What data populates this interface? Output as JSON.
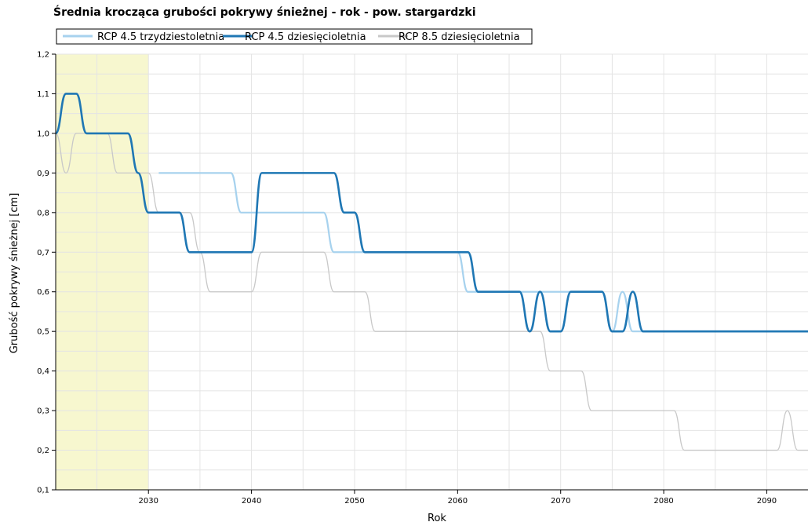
{
  "chart_data": {
    "type": "line",
    "title": "Średnia krocząca grubości pokrywy śnieżnej - rok - pow. stargardzki",
    "xlabel": "Rok",
    "ylabel": "Grubość pokrywy śnieżnej [cm]",
    "xlim": [
      2021,
      2094
    ],
    "ylim": [
      0.1,
      1.2
    ],
    "x_ticks": [
      2030,
      2040,
      2050,
      2060,
      2070,
      2080,
      2090
    ],
    "y_ticks": [
      "0,1",
      "0,2",
      "0,3",
      "0,4",
      "0,5",
      "0,6",
      "0,7",
      "0,8",
      "0,9",
      "1,0",
      "1,1",
      "1,2"
    ],
    "grid": true,
    "legend_position": "top-left",
    "highlight_band": {
      "x_from": 2021,
      "x_to": 2030,
      "color": "#f7f7cf"
    },
    "series": [
      {
        "name": "RCP 4.5 trzydziestoletnia",
        "color": "#a7d2ee",
        "x": [
          2031,
          2038,
          2039,
          2047,
          2048,
          2050,
          2051,
          2060,
          2061,
          2065,
          2066,
          2074,
          2075,
          2076,
          2077,
          2094
        ],
        "y": [
          0.9,
          0.9,
          0.8,
          0.8,
          0.7,
          0.7,
          0.7,
          0.7,
          0.6,
          0.6,
          0.6,
          0.6,
          0.5,
          0.6,
          0.5,
          0.5
        ]
      },
      {
        "name": "RCP 4.5 dziesięcioletnia",
        "color": "#1f77b4",
        "x": [
          2021,
          2022,
          2023,
          2024,
          2026,
          2028,
          2029,
          2030,
          2031,
          2033,
          2034,
          2036,
          2040,
          2041,
          2048,
          2049,
          2050,
          2051,
          2061,
          2062,
          2065,
          2066,
          2067,
          2068,
          2069,
          2070,
          2071,
          2074,
          2075,
          2076,
          2077,
          2078,
          2094
        ],
        "y": [
          1.0,
          1.1,
          1.1,
          1.0,
          1.0,
          1.0,
          0.9,
          0.8,
          0.8,
          0.8,
          0.7,
          0.7,
          0.7,
          0.9,
          0.9,
          0.8,
          0.8,
          0.7,
          0.7,
          0.6,
          0.6,
          0.6,
          0.5,
          0.6,
          0.5,
          0.5,
          0.6,
          0.6,
          0.5,
          0.5,
          0.6,
          0.5,
          0.5
        ]
      },
      {
        "name": "RCP 8.5 dziesięcioletnia",
        "color": "#c8c8c8",
        "x": [
          2021,
          2022,
          2023,
          2026,
          2027,
          2030,
          2031,
          2034,
          2035,
          2036,
          2040,
          2041,
          2047,
          2048,
          2051,
          2052,
          2068,
          2069,
          2070,
          2072,
          2073,
          2081,
          2082,
          2091,
          2092,
          2093,
          2094
        ],
        "y": [
          1.0,
          0.9,
          1.0,
          1.0,
          0.9,
          0.9,
          0.8,
          0.8,
          0.7,
          0.6,
          0.6,
          0.7,
          0.7,
          0.6,
          0.6,
          0.5,
          0.5,
          0.4,
          0.4,
          0.4,
          0.3,
          0.3,
          0.2,
          0.2,
          0.3,
          0.2,
          0.2
        ]
      }
    ]
  }
}
